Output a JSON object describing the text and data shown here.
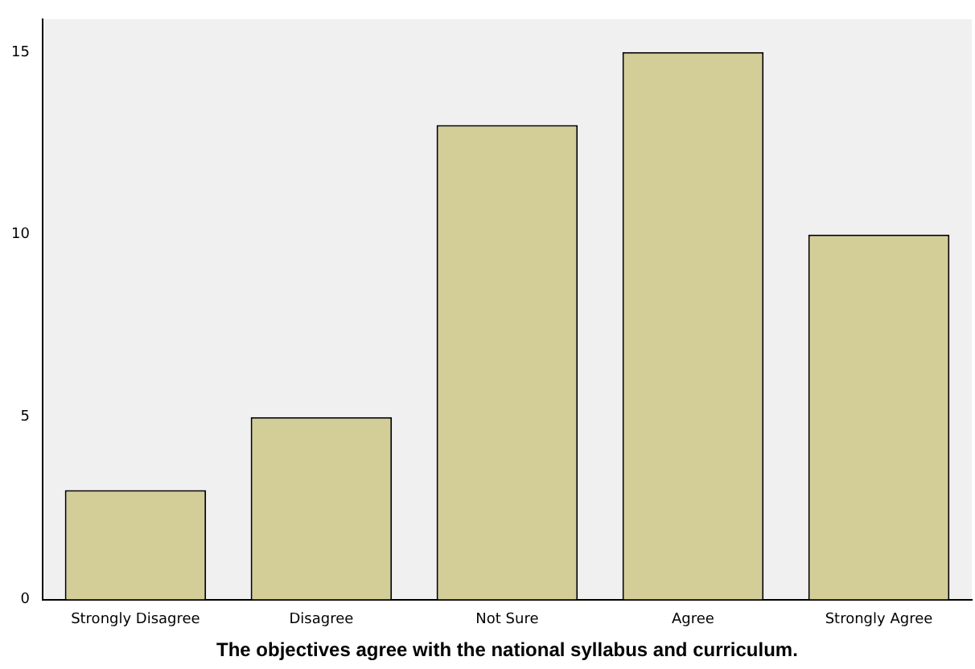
{
  "chart_data": {
    "type": "bar",
    "xlabel": "The objectives agree with the national syllabus and curriculum.",
    "categories": [
      "Strongly Disagree",
      "Disagree",
      "Not Sure",
      "Agree",
      "Strongly Agree"
    ],
    "values": [
      3,
      5,
      13,
      15,
      10
    ],
    "color": "#d3ce97",
    "ylim": [
      0,
      15.9
    ],
    "yticks": [
      0,
      5,
      10,
      15
    ],
    "grid": false,
    "legend": false
  }
}
